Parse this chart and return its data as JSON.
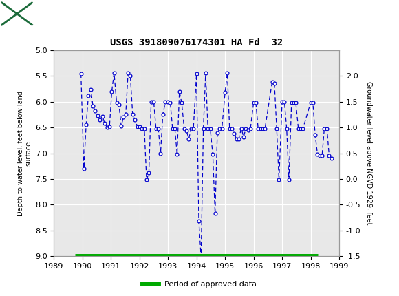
{
  "title": "USGS 391809076174301 HA Fd  32",
  "ylabel_left": "Depth to water level, feet below land\nsurface",
  "ylabel_right": "Groundwater level above NGVD 1929, feet",
  "xlim": [
    1989,
    1999
  ],
  "ylim_left": [
    9.0,
    5.0
  ],
  "ylim_right": [
    -1.5,
    2.5
  ],
  "yticks_left": [
    5.0,
    5.5,
    6.0,
    6.5,
    7.0,
    7.5,
    8.0,
    8.5,
    9.0
  ],
  "yticks_right": [
    2.0,
    1.5,
    1.0,
    0.5,
    0.0,
    -0.5,
    -1.0,
    -1.5
  ],
  "xticks": [
    1989,
    1990,
    1991,
    1992,
    1993,
    1994,
    1995,
    1996,
    1997,
    1998,
    1999
  ],
  "header_color": "#1b6b3a",
  "plot_bg_color": "#e8e8e8",
  "data_color": "#0000cc",
  "approved_bar_color": "#00aa00",
  "approved_bar_y": 9.0,
  "approved_bar_xstart": 1989.75,
  "approved_bar_xend": 1998.25,
  "legend_label": "Period of approved data",
  "dates": [
    1989.95,
    1990.05,
    1990.13,
    1990.21,
    1990.29,
    1990.37,
    1990.45,
    1990.54,
    1990.62,
    1990.7,
    1990.78,
    1990.87,
    1990.95,
    1991.03,
    1991.11,
    1991.2,
    1991.28,
    1991.36,
    1991.44,
    1991.52,
    1991.6,
    1991.68,
    1991.76,
    1991.84,
    1991.93,
    1992.01,
    1992.09,
    1992.17,
    1992.25,
    1992.33,
    1992.41,
    1992.5,
    1992.58,
    1992.66,
    1992.74,
    1992.82,
    1992.91,
    1993.0,
    1993.08,
    1993.16,
    1993.24,
    1993.32,
    1993.4,
    1993.48,
    1993.57,
    1993.65,
    1993.73,
    1993.81,
    1993.89,
    1994.0,
    1994.08,
    1994.16,
    1994.24,
    1994.32,
    1994.4,
    1994.48,
    1994.57,
    1994.65,
    1994.73,
    1994.81,
    1994.89,
    1995.0,
    1995.08,
    1995.16,
    1995.24,
    1995.32,
    1995.4,
    1995.48,
    1995.57,
    1995.65,
    1995.73,
    1995.81,
    1995.89,
    1996.0,
    1996.08,
    1996.16,
    1996.24,
    1996.32,
    1996.4,
    1996.65,
    1996.73,
    1996.81,
    1996.89,
    1997.0,
    1997.08,
    1997.16,
    1997.24,
    1997.33,
    1997.4,
    1997.48,
    1997.57,
    1997.65,
    1997.73,
    1998.0,
    1998.08,
    1998.16,
    1998.24,
    1998.32,
    1998.4,
    1998.48,
    1998.57,
    1998.65,
    1998.73
  ],
  "depths": [
    5.46,
    7.3,
    6.45,
    5.88,
    5.76,
    6.08,
    6.18,
    6.27,
    6.35,
    6.28,
    6.42,
    6.5,
    6.48,
    5.8,
    5.44,
    6.02,
    6.05,
    6.47,
    6.3,
    6.24,
    5.44,
    5.5,
    6.24,
    6.35,
    6.48,
    6.48,
    6.53,
    6.52,
    7.52,
    7.38,
    6.0,
    6.0,
    6.52,
    6.52,
    7.0,
    6.25,
    6.0,
    6.0,
    6.02,
    6.52,
    6.52,
    7.02,
    5.8,
    6.02,
    6.52,
    6.57,
    6.72,
    6.52,
    6.52,
    5.46,
    8.32,
    9.02,
    6.52,
    5.44,
    6.52,
    6.52,
    7.02,
    8.17,
    6.6,
    6.52,
    6.52,
    5.82,
    5.44,
    6.52,
    6.52,
    6.62,
    6.72,
    6.72,
    6.52,
    6.68,
    6.52,
    6.55,
    6.52,
    6.02,
    6.02,
    6.52,
    6.52,
    6.52,
    6.52,
    5.62,
    5.64,
    6.52,
    7.52,
    6.0,
    6.0,
    6.52,
    7.52,
    6.02,
    6.02,
    6.02,
    6.52,
    6.52,
    6.52,
    6.02,
    6.02,
    6.65,
    7.02,
    7.05,
    7.05,
    6.52,
    6.52,
    7.05,
    7.1
  ]
}
